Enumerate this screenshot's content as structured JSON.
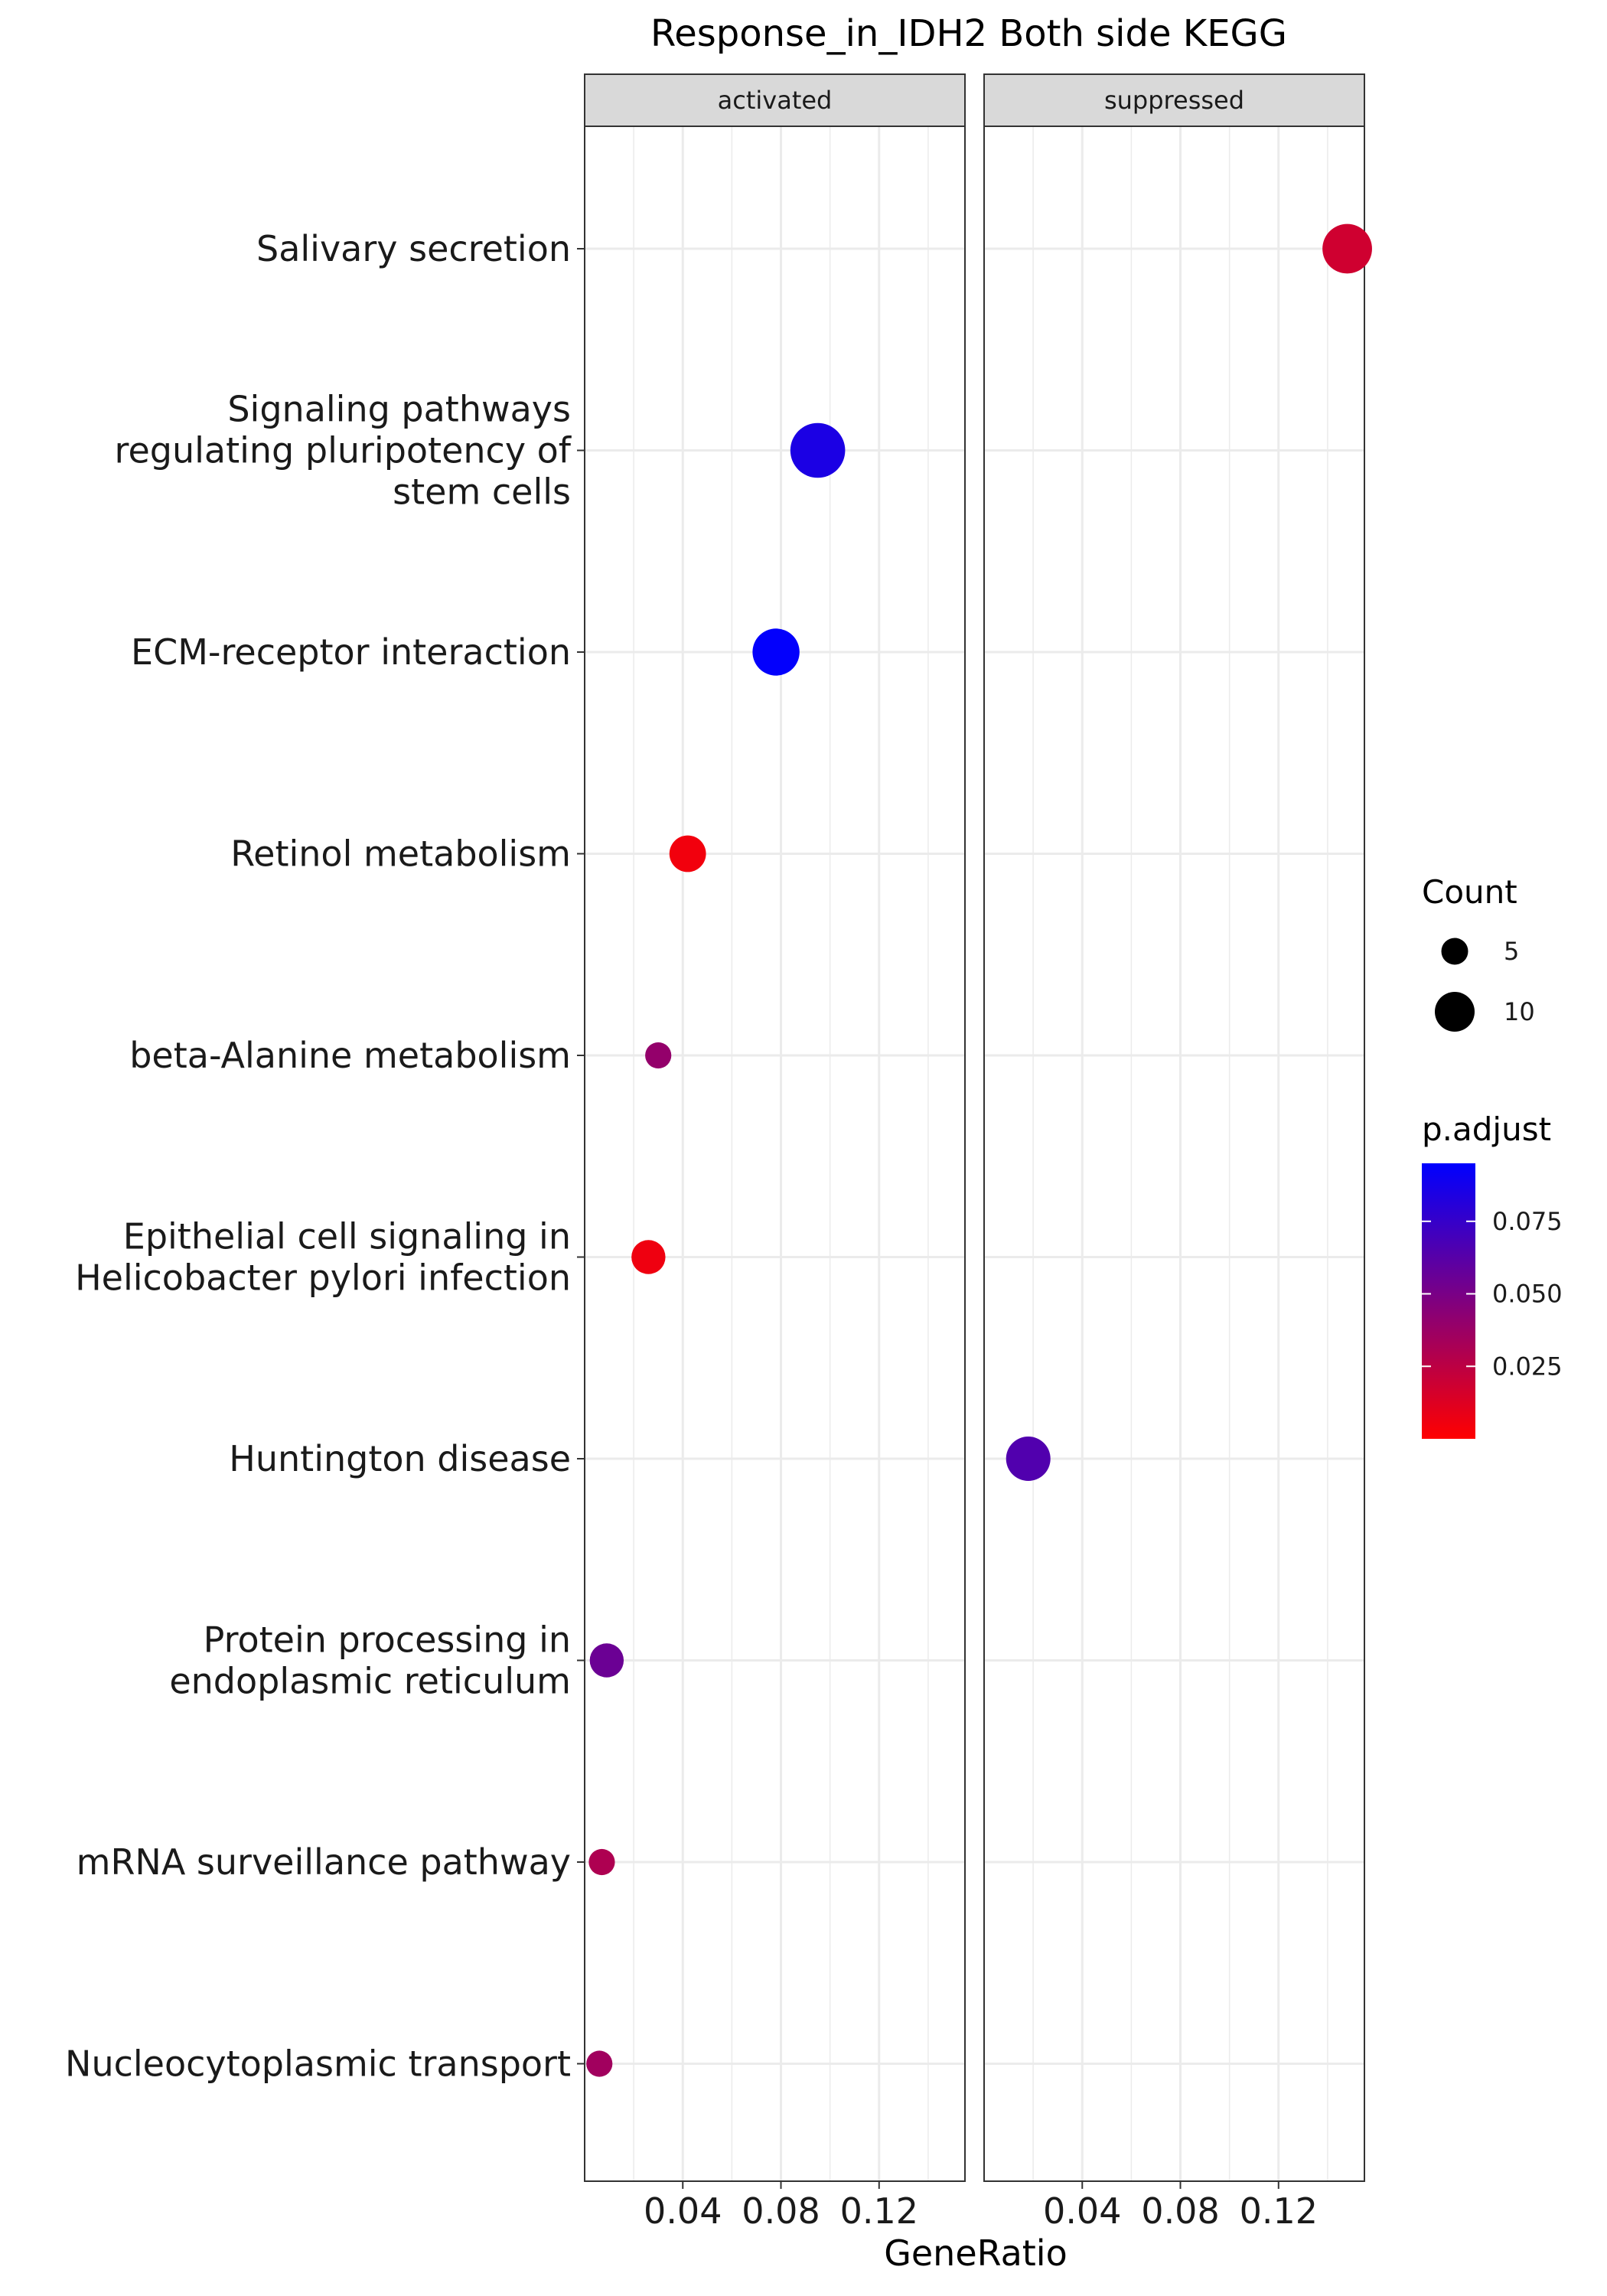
{
  "chart_data": {
    "type": "scatter",
    "title": "Response_in_IDH2 Both side KEGG",
    "xlabel": "GeneRatio",
    "ylabel": "",
    "xlim": [
      0.0,
      0.155
    ],
    "x_ticks": [
      "0.04",
      "0.08",
      "0.12"
    ],
    "x_tick_values": [
      0.04,
      0.08,
      0.12
    ],
    "facets": [
      "activated",
      "suppressed"
    ],
    "categories": [
      "Salivary secretion",
      "Signaling pathways\nregulating pluripotency of\nstem cells",
      "ECM-receptor interaction",
      "Retinol metabolism",
      "beta-Alanine metabolism",
      "Epithelial cell signaling in\nHelicobacter pylori infection",
      "Huntington disease",
      "Protein processing in\nendoplasmic reticulum",
      "mRNA surveillance pathway",
      "Nucleocytoplasmic transport"
    ],
    "points": [
      {
        "facet": "activated",
        "category": "Signaling pathways\nregulating pluripotency of\nstem cells",
        "x": 0.095,
        "count": 14,
        "p_adjust": 0.085
      },
      {
        "facet": "activated",
        "category": "ECM-receptor interaction",
        "x": 0.078,
        "count": 11,
        "p_adjust": 0.094
      },
      {
        "facet": "activated",
        "category": "Retinol metabolism",
        "x": 0.042,
        "count": 7,
        "p_adjust": 0.005
      },
      {
        "facet": "activated",
        "category": "beta-Alanine metabolism",
        "x": 0.03,
        "count": 3,
        "p_adjust": 0.04
      },
      {
        "facet": "activated",
        "category": "Epithelial cell signaling in\nHelicobacter pylori infection",
        "x": 0.026,
        "count": 6,
        "p_adjust": 0.006
      },
      {
        "facet": "activated",
        "category": "Protein processing in\nendoplasmic reticulum",
        "x": 0.009,
        "count": 6,
        "p_adjust": 0.055
      },
      {
        "facet": "activated",
        "category": "mRNA surveillance pathway",
        "x": 0.007,
        "count": 3,
        "p_adjust": 0.03
      },
      {
        "facet": "activated",
        "category": "Nucleocytoplasmic transport",
        "x": 0.006,
        "count": 3,
        "p_adjust": 0.035
      },
      {
        "facet": "suppressed",
        "category": "Salivary secretion",
        "x": 0.148,
        "count": 12,
        "p_adjust": 0.018
      },
      {
        "facet": "suppressed",
        "category": "Huntington disease",
        "x": 0.018,
        "count": 10,
        "p_adjust": 0.065
      }
    ],
    "legend_size": {
      "title": "Count",
      "entries": [
        {
          "label": "5",
          "value": 5
        },
        {
          "label": "10",
          "value": 10
        }
      ]
    },
    "legend_color": {
      "title": "p.adjust",
      "ticks": [
        {
          "label": "0.075",
          "value": 0.075
        },
        {
          "label": "0.050",
          "value": 0.05
        },
        {
          "label": "0.025",
          "value": 0.025
        }
      ],
      "range": [
        0.0,
        0.095
      ],
      "low_color": "#ff0000",
      "high_color": "#0000ff"
    },
    "legend_position": "right",
    "grid": true,
    "panel_background": "#ffffff",
    "strip_fill": "#d9d9d9",
    "grid_color": "#ebebeb"
  }
}
